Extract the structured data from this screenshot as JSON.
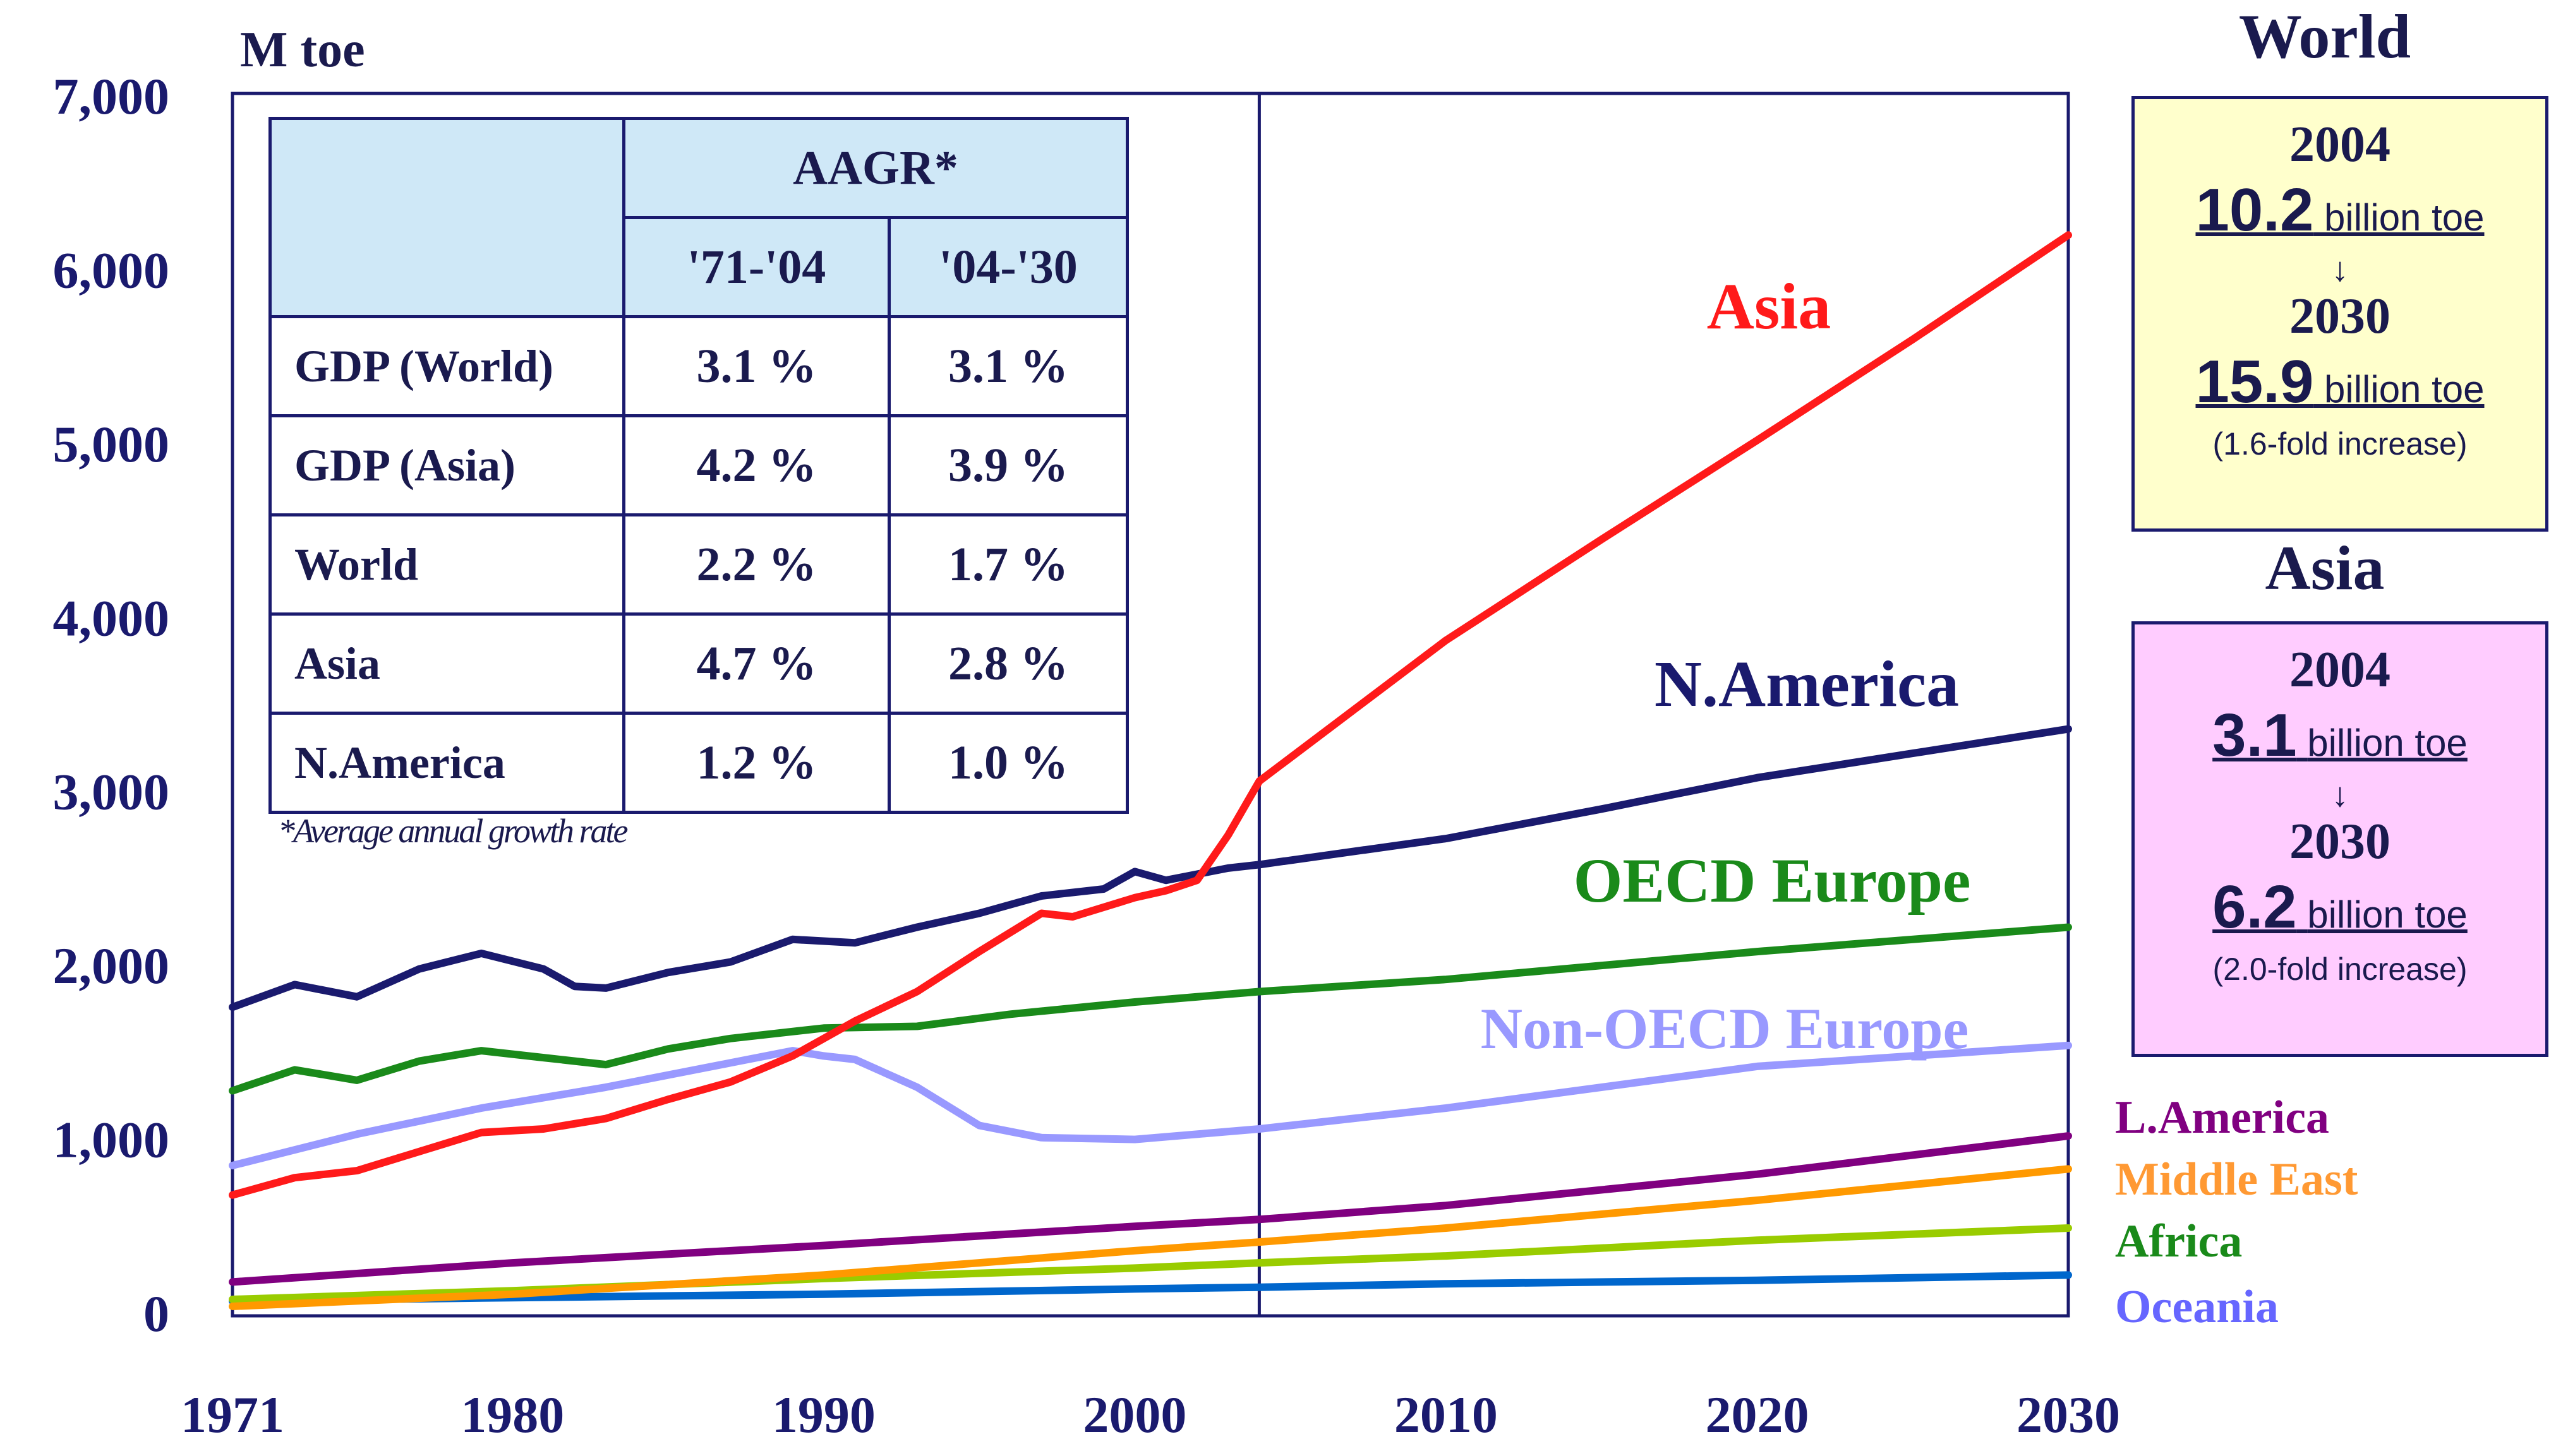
{
  "chart_data": {
    "type": "line",
    "ylabel": "M toe",
    "x_ticks": [
      1971,
      1980,
      1990,
      2000,
      2010,
      2020,
      2030
    ],
    "y_ticks": [
      "0",
      "1,000",
      "2,000",
      "3,000",
      "4,000",
      "5,000",
      "6,000",
      "7,000"
    ],
    "xlim": [
      1971,
      2030
    ],
    "ylim": [
      0,
      7000
    ],
    "divider_year": 2004,
    "series": [
      {
        "name": "Asia",
        "color": "#ff1a1a",
        "label_color": "#ff1a1a",
        "points": [
          [
            1971,
            680
          ],
          [
            1973,
            780
          ],
          [
            1975,
            820
          ],
          [
            1977,
            930
          ],
          [
            1979,
            1040
          ],
          [
            1981,
            1060
          ],
          [
            1983,
            1120
          ],
          [
            1985,
            1230
          ],
          [
            1987,
            1330
          ],
          [
            1989,
            1480
          ],
          [
            1991,
            1680
          ],
          [
            1993,
            1850
          ],
          [
            1995,
            2080
          ],
          [
            1997,
            2300
          ],
          [
            1998,
            2280
          ],
          [
            2000,
            2390
          ],
          [
            2001,
            2430
          ],
          [
            2002,
            2490
          ],
          [
            2003,
            2750
          ],
          [
            2004,
            3060
          ],
          [
            2006,
            3330
          ],
          [
            2010,
            3870
          ],
          [
            2015,
            4450
          ],
          [
            2020,
            5020
          ],
          [
            2025,
            5600
          ],
          [
            2030,
            6200
          ]
        ]
      },
      {
        "name": "N.America",
        "color": "#1a1a6e",
        "label_color": "#1a1a6e",
        "points": [
          [
            1971,
            1760
          ],
          [
            1973,
            1890
          ],
          [
            1975,
            1820
          ],
          [
            1977,
            1980
          ],
          [
            1979,
            2070
          ],
          [
            1981,
            1980
          ],
          [
            1982,
            1880
          ],
          [
            1983,
            1870
          ],
          [
            1985,
            1960
          ],
          [
            1987,
            2020
          ],
          [
            1989,
            2150
          ],
          [
            1991,
            2130
          ],
          [
            1993,
            2220
          ],
          [
            1995,
            2300
          ],
          [
            1997,
            2400
          ],
          [
            1999,
            2440
          ],
          [
            2000,
            2540
          ],
          [
            2001,
            2490
          ],
          [
            2003,
            2560
          ],
          [
            2004,
            2580
          ],
          [
            2010,
            2730
          ],
          [
            2015,
            2900
          ],
          [
            2020,
            3080
          ],
          [
            2025,
            3220
          ],
          [
            2030,
            3360
          ]
        ]
      },
      {
        "name": "OECD Europe",
        "color": "#1a8a1a",
        "label_color": "#1a8a1a",
        "points": [
          [
            1971,
            1280
          ],
          [
            1973,
            1400
          ],
          [
            1975,
            1340
          ],
          [
            1977,
            1450
          ],
          [
            1979,
            1510
          ],
          [
            1981,
            1470
          ],
          [
            1983,
            1430
          ],
          [
            1985,
            1520
          ],
          [
            1987,
            1580
          ],
          [
            1990,
            1640
          ],
          [
            1993,
            1650
          ],
          [
            1996,
            1720
          ],
          [
            2000,
            1790
          ],
          [
            2004,
            1850
          ],
          [
            2010,
            1920
          ],
          [
            2020,
            2080
          ],
          [
            2030,
            2220
          ]
        ]
      },
      {
        "name": "Non-OECD Europe",
        "color": "#9999ff",
        "label_color": "#9999ff",
        "points": [
          [
            1971,
            850
          ],
          [
            1975,
            1030
          ],
          [
            1979,
            1180
          ],
          [
            1983,
            1300
          ],
          [
            1987,
            1440
          ],
          [
            1989,
            1510
          ],
          [
            1990,
            1480
          ],
          [
            1991,
            1460
          ],
          [
            1993,
            1300
          ],
          [
            1995,
            1080
          ],
          [
            1997,
            1010
          ],
          [
            2000,
            1000
          ],
          [
            2004,
            1060
          ],
          [
            2010,
            1180
          ],
          [
            2020,
            1420
          ],
          [
            2030,
            1540
          ]
        ]
      },
      {
        "name": "L.America",
        "color": "#800080",
        "label_color": "#800080",
        "points": [
          [
            1971,
            180
          ],
          [
            1980,
            290
          ],
          [
            1990,
            390
          ],
          [
            2000,
            500
          ],
          [
            2004,
            540
          ],
          [
            2010,
            620
          ],
          [
            2020,
            800
          ],
          [
            2030,
            1020
          ]
        ]
      },
      {
        "name": "Middle East",
        "color": "#ff9900",
        "label_color": "#ff9933",
        "points": [
          [
            1971,
            40
          ],
          [
            1980,
            110
          ],
          [
            1990,
            220
          ],
          [
            2000,
            360
          ],
          [
            2004,
            410
          ],
          [
            2010,
            490
          ],
          [
            2020,
            650
          ],
          [
            2030,
            830
          ]
        ]
      },
      {
        "name": "Africa",
        "color": "#99cc00",
        "label_color": "#1a8a1a",
        "points": [
          [
            1971,
            80
          ],
          [
            1980,
            130
          ],
          [
            1990,
            200
          ],
          [
            2000,
            260
          ],
          [
            2004,
            290
          ],
          [
            2010,
            330
          ],
          [
            2020,
            420
          ],
          [
            2030,
            490
          ]
        ]
      },
      {
        "name": "Oceania",
        "color": "#0066cc",
        "label_color": "#6666ff",
        "points": [
          [
            1971,
            70
          ],
          [
            1980,
            90
          ],
          [
            1990,
            110
          ],
          [
            2000,
            140
          ],
          [
            2004,
            150
          ],
          [
            2010,
            170
          ],
          [
            2020,
            190
          ],
          [
            2030,
            220
          ]
        ]
      }
    ],
    "table": {
      "group_header": "AAGR*",
      "columns": [
        "'71-'04",
        "'04-'30"
      ],
      "rows": [
        {
          "label": "GDP (World)",
          "values": [
            "3.1 %",
            "3.1 %"
          ]
        },
        {
          "label": "GDP (Asia)",
          "values": [
            "4.2 %",
            "3.9 %"
          ]
        },
        {
          "label": "World",
          "values": [
            "2.2 %",
            "1.7 %"
          ]
        },
        {
          "label": "Asia",
          "values": [
            "4.7 %",
            "2.8 %"
          ]
        },
        {
          "label": "N.America",
          "values": [
            "1.2 %",
            "1.0 %"
          ]
        }
      ],
      "note": "*Average annual growth rate"
    },
    "side_boxes": {
      "world": {
        "title": "World",
        "year1": "2004",
        "value1": "10.2",
        "unit": "billion toe",
        "arrow": "↓",
        "year2": "2030",
        "value2": "15.9",
        "fold": "(1.6-fold increase)",
        "bg": "#ffffcc"
      },
      "asia": {
        "title": "Asia",
        "year1": "2004",
        "value1": "3.1",
        "unit": "billion toe",
        "arrow": "↓",
        "year2": "2030",
        "value2": "6.2",
        "fold": "(2.0-fold increase)",
        "bg": "#ffccff"
      }
    }
  }
}
